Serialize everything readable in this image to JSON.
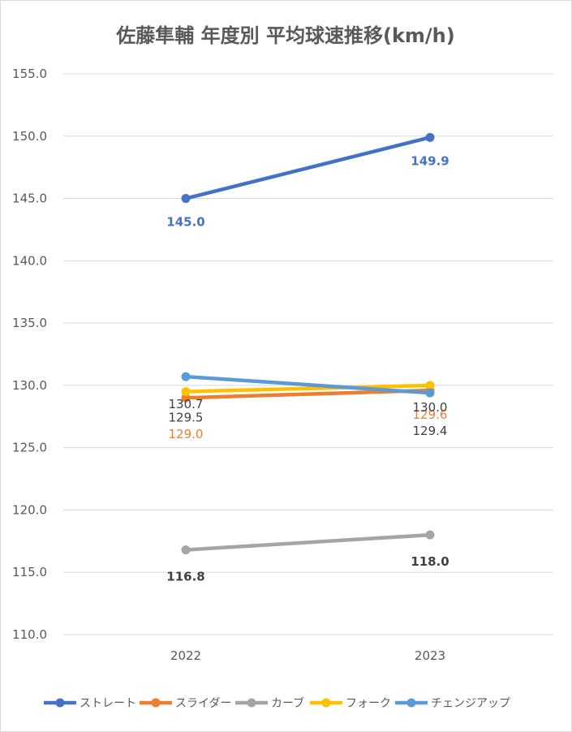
{
  "chart_data": {
    "type": "line",
    "title": "佐藤隼輔 年度別 平均球速推移(km/h)",
    "categories": [
      "2022",
      "2023"
    ],
    "ylim": [
      110,
      155
    ],
    "yticks": [
      "110.0",
      "115.0",
      "120.0",
      "125.0",
      "130.0",
      "135.0",
      "140.0",
      "145.0",
      "150.0",
      "155.0"
    ],
    "grid": true,
    "legend_position": "bottom",
    "series": [
      {
        "name": "ストレート",
        "color": "#4472c4",
        "values": [
          145.0,
          149.9
        ],
        "labels": [
          "145.0",
          "149.9"
        ],
        "label_color": "#4472c4"
      },
      {
        "name": "スライダー",
        "color": "#ed7d31",
        "values": [
          129.0,
          129.6
        ],
        "labels": [
          "129.0",
          "129.6"
        ],
        "label_color": "#ed7d31"
      },
      {
        "name": "カーブ",
        "color": "#a5a5a5",
        "values": [
          116.8,
          118.0
        ],
        "labels": [
          "116.8",
          "118.0"
        ],
        "label_color": "#404040"
      },
      {
        "name": "フォーク",
        "color": "#ffc000",
        "values": [
          129.5,
          130.0
        ],
        "labels": [
          "129.5",
          "130.0"
        ],
        "label_color": "#404040"
      },
      {
        "name": "チェンジアップ",
        "color": "#5b9bd5",
        "values": [
          130.7,
          129.4
        ],
        "labels": [
          "130.7",
          "129.4"
        ],
        "label_color": "#404040"
      }
    ]
  }
}
